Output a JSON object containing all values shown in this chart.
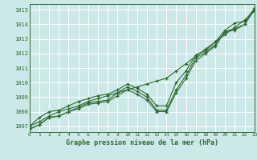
{
  "title": "Graphe pression niveau de la mer (hPa)",
  "bg_color": "#cce8e8",
  "grid_color": "#b8d8d8",
  "line_color": "#2d6a2d",
  "xlim": [
    0,
    23
  ],
  "ylim": [
    1006.6,
    1015.4
  ],
  "yticks": [
    1007,
    1008,
    1009,
    1010,
    1011,
    1012,
    1013,
    1014,
    1015
  ],
  "xticks": [
    0,
    1,
    2,
    3,
    4,
    5,
    6,
    7,
    8,
    9,
    10,
    11,
    12,
    13,
    14,
    15,
    16,
    17,
    18,
    19,
    20,
    21,
    22,
    23
  ],
  "series": [
    [
      1006.8,
      1007.1,
      1007.6,
      1007.7,
      1008.0,
      1008.2,
      1008.5,
      1008.6,
      1008.7,
      1009.1,
      1009.5,
      1009.2,
      1008.8,
      1008.0,
      1008.0,
      1009.3,
      1010.3,
      1011.5,
      1012.0,
      1012.5,
      1013.5,
      1013.6,
      1014.0,
      1015.0
    ],
    [
      1006.8,
      1007.1,
      1007.6,
      1007.7,
      1008.0,
      1008.3,
      1008.6,
      1008.7,
      1008.8,
      1009.3,
      1009.7,
      1009.4,
      1009.0,
      1008.1,
      1008.1,
      1009.5,
      1010.5,
      1011.7,
      1012.1,
      1012.6,
      1013.5,
      1013.7,
      1014.0,
      1015.1
    ],
    [
      1007.0,
      1007.6,
      1008.0,
      1008.1,
      1008.4,
      1008.7,
      1008.9,
      1009.1,
      1009.2,
      1009.5,
      1009.9,
      1009.6,
      1009.2,
      1008.4,
      1008.4,
      1010.0,
      1010.8,
      1011.9,
      1012.2,
      1012.8,
      1013.6,
      1014.1,
      1014.2,
      1015.1
    ],
    [
      1007.0,
      1007.3,
      1007.7,
      1008.0,
      1008.2,
      1008.4,
      1008.7,
      1008.9,
      1009.1,
      1009.3,
      1009.5,
      1009.7,
      1009.9,
      1010.1,
      1010.3,
      1010.8,
      1011.3,
      1011.8,
      1012.3,
      1012.8,
      1013.3,
      1013.8,
      1014.3,
      1014.9
    ]
  ]
}
